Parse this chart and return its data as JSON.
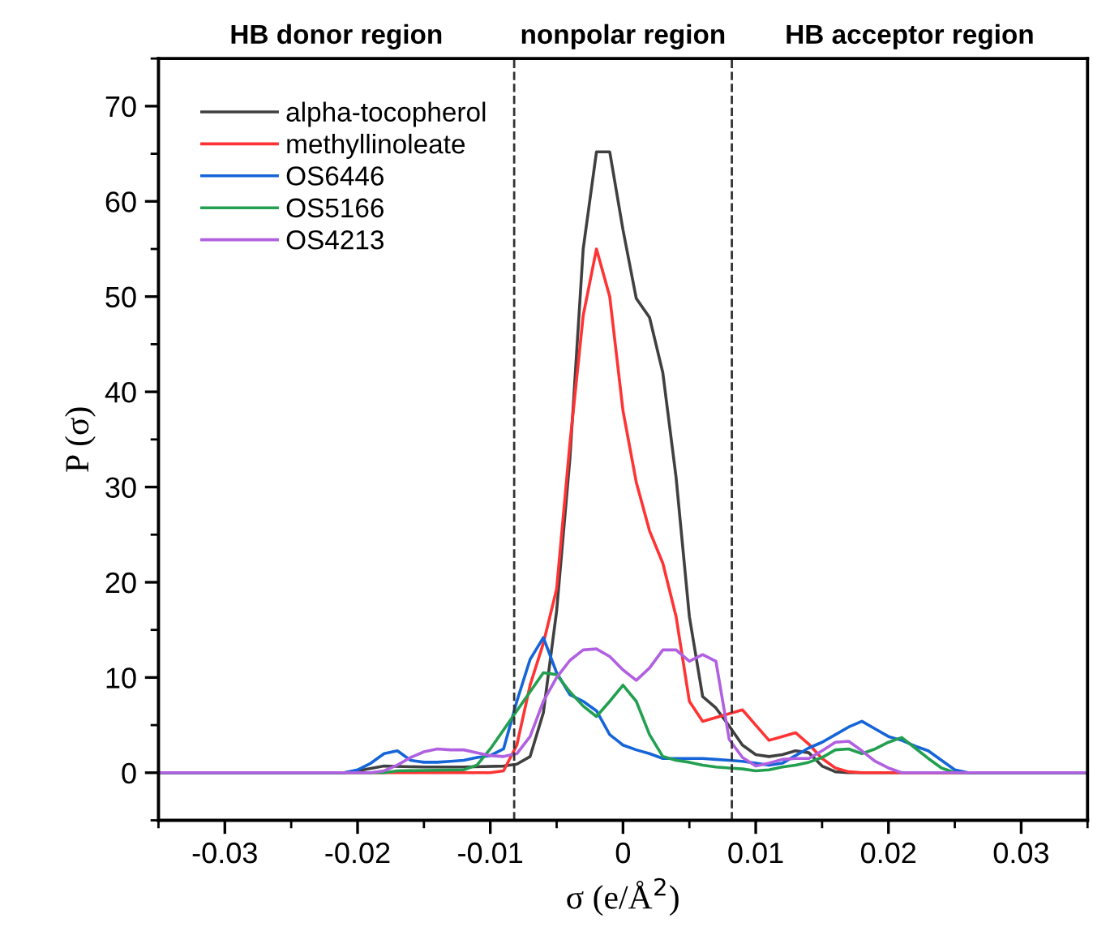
{
  "chart_data": {
    "type": "line",
    "xlabel": "σ (e/Å$^{2}$)",
    "ylabel": "P (σ)",
    "annotations": [
      "HB donor region",
      "nonpolar region",
      "HB acceptor region"
    ],
    "xlim": [
      -0.035,
      0.035
    ],
    "ylim": [
      -5,
      75
    ],
    "xticks": [
      {
        "value": -0.035,
        "label": null
      },
      -0.03,
      {
        "value": -0.025,
        "label": null
      },
      -0.02,
      {
        "value": -0.015,
        "label": null
      },
      -0.01,
      {
        "value": -0.005,
        "label": null
      },
      0,
      {
        "value": 0.005,
        "label": null
      },
      0.01,
      {
        "value": 0.015,
        "label": null
      },
      0.02,
      {
        "value": 0.025,
        "label": null
      },
      0.03,
      {
        "value": 0.035,
        "label": null
      }
    ],
    "yticks": [
      {
        "value": -5,
        "label": null
      },
      0,
      {
        "value": 5,
        "label": null
      },
      10,
      {
        "value": 15,
        "label": null
      },
      20,
      {
        "value": 25,
        "label": null
      },
      30,
      {
        "value": 35,
        "label": null
      },
      40,
      {
        "value": 45,
        "label": null
      },
      50,
      {
        "value": 55,
        "label": null
      },
      60,
      {
        "value": 65,
        "label": null
      },
      70,
      {
        "value": 75,
        "label": null
      }
    ],
    "ref_lines": [
      {
        "axis": "x",
        "value": -0.0082,
        "color": "#333333",
        "line_style": "dashed"
      },
      {
        "axis": "x",
        "value": 0.0082,
        "color": "#333333",
        "line_style": "dashed"
      }
    ],
    "grid": false,
    "legend": "top left",
    "marker": "none",
    "line_style": "solid",
    "series": [
      {
        "name": "alpha-tocopherol",
        "color": "#404040",
        "x": [
          -0.035,
          -0.021,
          -0.02,
          -0.018,
          -0.015,
          -0.012,
          -0.009,
          -0.008,
          -0.007,
          -0.006,
          -0.005,
          -0.004,
          -0.003,
          -0.002,
          -0.001,
          0,
          0.001,
          0.002,
          0.003,
          0.004,
          0.005,
          0.006,
          0.007,
          0.008,
          0.009,
          0.01,
          0.011,
          0.012,
          0.013,
          0.014,
          0.015,
          0.016,
          0.017,
          0.035
        ],
        "values": [
          0,
          0,
          0.2,
          0.7,
          0.6,
          0.6,
          0.7,
          0.9,
          1.7,
          6.3,
          17,
          33,
          55,
          65.2,
          65.2,
          57,
          49.8,
          47.8,
          42,
          31,
          16.4,
          8,
          6.8,
          4.9,
          2.9,
          1.9,
          1.7,
          1.9,
          2.3,
          2.1,
          0.7,
          0.1,
          0,
          0
        ]
      },
      {
        "name": "methyllinoleate",
        "color": "#ff3333",
        "x": [
          -0.035,
          -0.01,
          -0.009,
          -0.008,
          -0.007,
          -0.006,
          -0.005,
          -0.004,
          -0.003,
          -0.002,
          -0.001,
          0,
          0.001,
          0.002,
          0.003,
          0.004,
          0.005,
          0.006,
          0.007,
          0.008,
          0.009,
          0.01,
          0.011,
          0.012,
          0.013,
          0.014,
          0.015,
          0.016,
          0.017,
          0.018,
          0.035
        ],
        "values": [
          0,
          0,
          0.2,
          2.9,
          9.2,
          13.6,
          19.3,
          34.6,
          48,
          55,
          50,
          38,
          30.5,
          25.4,
          22,
          16.4,
          7.5,
          5.4,
          5.8,
          6.2,
          6.6,
          5,
          3.4,
          3.8,
          4.2,
          3,
          1.5,
          0.5,
          0.1,
          0,
          0
        ]
      },
      {
        "name": "OS6446",
        "color": "#1565d8",
        "x": [
          -0.035,
          -0.021,
          -0.02,
          -0.019,
          -0.018,
          -0.017,
          -0.016,
          -0.015,
          -0.014,
          -0.013,
          -0.012,
          -0.011,
          -0.01,
          -0.009,
          -0.008,
          -0.007,
          -0.006,
          -0.005,
          -0.004,
          -0.003,
          -0.002,
          -0.001,
          0,
          0.001,
          0.002,
          0.003,
          0.004,
          0.005,
          0.006,
          0.007,
          0.008,
          0.009,
          0.01,
          0.011,
          0.012,
          0.013,
          0.014,
          0.015,
          0.016,
          0.017,
          0.018,
          0.019,
          0.02,
          0.021,
          0.022,
          0.023,
          0.024,
          0.025,
          0.026,
          0.035
        ],
        "values": [
          0,
          0,
          0.3,
          1,
          2,
          2.3,
          1.3,
          1.1,
          1.1,
          1.2,
          1.3,
          1.6,
          1.8,
          2.5,
          7.5,
          11.9,
          14.2,
          10.5,
          8.2,
          7.5,
          6.5,
          4,
          2.9,
          2.4,
          2,
          1.5,
          1.5,
          1.5,
          1.5,
          1.4,
          1.3,
          1.2,
          1,
          0.8,
          1,
          1.8,
          2.6,
          3.2,
          4,
          4.8,
          5.4,
          4.6,
          3.8,
          3.4,
          2.8,
          2.3,
          1.3,
          0.3,
          0,
          0
        ]
      },
      {
        "name": "OS5166",
        "color": "#22a050",
        "x": [
          -0.035,
          -0.018,
          -0.017,
          -0.012,
          -0.011,
          -0.01,
          -0.009,
          -0.008,
          -0.007,
          -0.006,
          -0.005,
          -0.004,
          -0.003,
          -0.002,
          -0.001,
          0,
          0.001,
          0.002,
          0.003,
          0.004,
          0.005,
          0.006,
          0.007,
          0.008,
          0.009,
          0.01,
          0.011,
          0.012,
          0.013,
          0.014,
          0.015,
          0.016,
          0.017,
          0.018,
          0.019,
          0.02,
          0.021,
          0.022,
          0.023,
          0.024,
          0.025,
          0.035
        ],
        "values": [
          0,
          0,
          0.2,
          0.3,
          0.8,
          2.5,
          4.5,
          6.5,
          8.5,
          10.5,
          10.3,
          8.5,
          7,
          5.9,
          7.5,
          9.2,
          7.5,
          4,
          1.7,
          1.3,
          1.1,
          0.8,
          0.6,
          0.5,
          0.4,
          0.2,
          0.3,
          0.6,
          0.8,
          1.1,
          1.6,
          2.4,
          2.5,
          2,
          2.5,
          3.2,
          3.7,
          2.6,
          1.5,
          0.5,
          0,
          0
        ]
      },
      {
        "name": "OS4213",
        "color": "#b060e0",
        "x": [
          -0.035,
          -0.019,
          -0.018,
          -0.017,
          -0.016,
          -0.015,
          -0.014,
          -0.013,
          -0.012,
          -0.011,
          -0.01,
          -0.009,
          -0.008,
          -0.007,
          -0.006,
          -0.005,
          -0.004,
          -0.003,
          -0.002,
          -0.001,
          0,
          0.001,
          0.002,
          0.003,
          0.004,
          0.005,
          0.006,
          0.007,
          0.008,
          0.009,
          0.01,
          0.011,
          0.012,
          0.013,
          0.014,
          0.015,
          0.016,
          0.017,
          0.018,
          0.019,
          0.02,
          0.021,
          0.035
        ],
        "values": [
          0,
          0,
          0.2,
          0.8,
          1.6,
          2.2,
          2.5,
          2.4,
          2.4,
          2.1,
          1.8,
          1.7,
          2,
          3.8,
          7.5,
          10,
          11.8,
          12.9,
          13,
          12.2,
          10.8,
          9.7,
          11,
          12.9,
          12.9,
          11.7,
          12.4,
          11.7,
          3.5,
          1.6,
          0.7,
          1,
          1.4,
          1.5,
          1.5,
          2.3,
          3.2,
          3.3,
          2.3,
          1.2,
          0.5,
          0,
          0
        ]
      }
    ]
  }
}
